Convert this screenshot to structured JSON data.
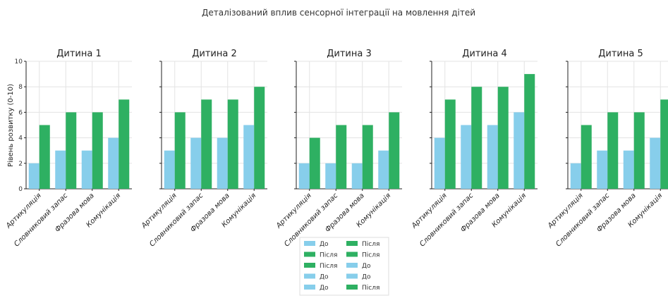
{
  "chart_data": {
    "type": "bar",
    "title": "Деталізований вплив сенсорної інтеграції на мовлення дітей",
    "ylabel": "Рівень розвитку (0-10)",
    "ylim": [
      0,
      10
    ],
    "yticks": [
      0,
      2,
      4,
      6,
      8,
      10
    ],
    "grid": true,
    "categories": [
      "Артикуляція",
      "Словниковий запас",
      "Фразова мова",
      "Комунікація"
    ],
    "colors": {
      "before": "#87ceeb",
      "after": "#2eb062"
    },
    "legend": {
      "placement": "bottom-center",
      "entries": [
        {
          "label": "До",
          "color": "#87ceeb"
        },
        {
          "label": "Після",
          "color": "#2eb062"
        },
        {
          "label": "Після",
          "color": "#2eb062"
        },
        {
          "label": "До",
          "color": "#87ceeb"
        },
        {
          "label": "До",
          "color": "#87ceeb"
        },
        {
          "label": "Після",
          "color": "#2eb062"
        },
        {
          "label": "Після",
          "color": "#2eb062"
        },
        {
          "label": "До",
          "color": "#87ceeb"
        },
        {
          "label": "До",
          "color": "#87ceeb"
        },
        {
          "label": "Після",
          "color": "#2eb062"
        }
      ]
    },
    "panels": [
      {
        "title": "Дитина 1",
        "series": [
          {
            "name": "До",
            "values": [
              2,
              3,
              3,
              4
            ]
          },
          {
            "name": "Після",
            "values": [
              5,
              6,
              6,
              7
            ]
          }
        ]
      },
      {
        "title": "Дитина 2",
        "series": [
          {
            "name": "До",
            "values": [
              3,
              4,
              4,
              5
            ]
          },
          {
            "name": "Після",
            "values": [
              6,
              7,
              7,
              8
            ]
          }
        ]
      },
      {
        "title": "Дитина 3",
        "series": [
          {
            "name": "До",
            "values": [
              2,
              2,
              2,
              3
            ]
          },
          {
            "name": "Після",
            "values": [
              4,
              5,
              5,
              6
            ]
          }
        ]
      },
      {
        "title": "Дитина 4",
        "series": [
          {
            "name": "До",
            "values": [
              4,
              5,
              5,
              6
            ]
          },
          {
            "name": "Після",
            "values": [
              7,
              8,
              8,
              9
            ]
          }
        ]
      },
      {
        "title": "Дитина 5",
        "series": [
          {
            "name": "До",
            "values": [
              2,
              3,
              3,
              4
            ]
          },
          {
            "name": "Після",
            "values": [
              5,
              6,
              6,
              7
            ]
          }
        ]
      }
    ]
  }
}
